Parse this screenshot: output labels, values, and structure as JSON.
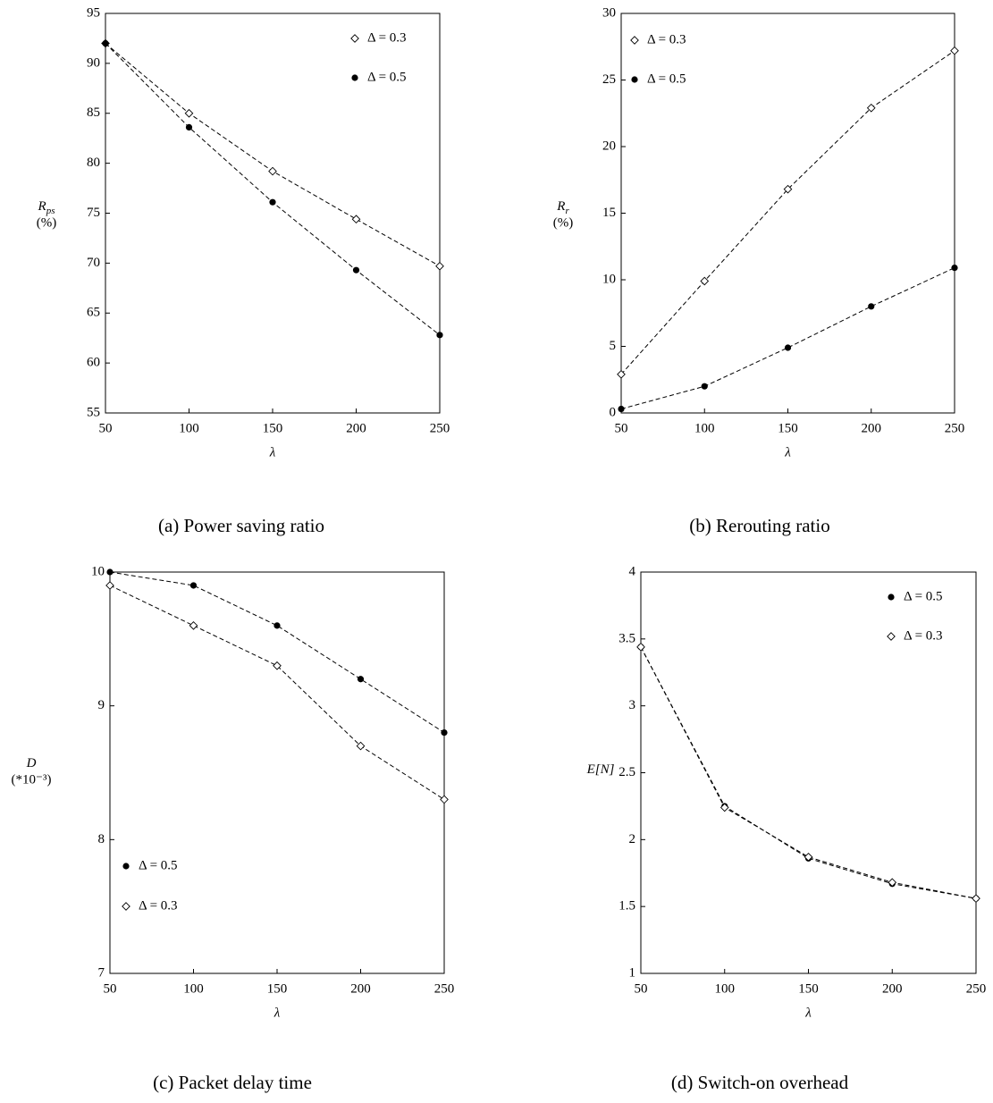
{
  "chart_data": [
    {
      "type": "line",
      "caption": "(a)  Power saving ratio",
      "xlabel": "λ",
      "ylabel": {
        "main": "R",
        "sub": "ps",
        "unit": "(%)"
      },
      "x": [
        50,
        100,
        150,
        200,
        250
      ],
      "xlim": [
        50,
        250
      ],
      "xticks": [
        50,
        100,
        150,
        200,
        250
      ],
      "ylim": [
        55,
        95
      ],
      "yticks": [
        55,
        60,
        65,
        70,
        75,
        80,
        85,
        90,
        95
      ],
      "legend": "top-right",
      "series": [
        {
          "name": "Δ = 0.3",
          "marker": "diamond",
          "color": "#000000",
          "values": [
            92,
            85,
            79.2,
            74.4,
            69.7
          ]
        },
        {
          "name": "Δ = 0.5",
          "marker": "dot",
          "color": "#000000",
          "values": [
            92,
            83.6,
            76.1,
            69.3,
            62.8
          ]
        }
      ]
    },
    {
      "type": "line",
      "caption": "(b)  Rerouting ratio",
      "xlabel": "λ",
      "ylabel": {
        "main": "R",
        "sub": "r",
        "unit": "(%)"
      },
      "x": [
        50,
        100,
        150,
        200,
        250
      ],
      "xlim": [
        50,
        250
      ],
      "xticks": [
        50,
        100,
        150,
        200,
        250
      ],
      "ylim": [
        0,
        30
      ],
      "yticks": [
        0,
        5,
        10,
        15,
        20,
        25,
        30
      ],
      "legend": "top-left",
      "series": [
        {
          "name": "Δ = 0.3",
          "marker": "diamond",
          "color": "#000000",
          "values": [
            2.9,
            9.9,
            16.8,
            22.9,
            27.2
          ]
        },
        {
          "name": "Δ = 0.5",
          "marker": "dot",
          "color": "#000000",
          "values": [
            0.3,
            2.0,
            4.9,
            8.0,
            10.9
          ]
        }
      ]
    },
    {
      "type": "line",
      "caption": "(c)  Packet delay time",
      "xlabel": "λ",
      "ylabel": {
        "main": "D",
        "unit": "(*10⁻³)"
      },
      "x": [
        50,
        100,
        150,
        200,
        250
      ],
      "xlim": [
        50,
        250
      ],
      "xticks": [
        50,
        100,
        150,
        200,
        250
      ],
      "ylim": [
        7,
        10
      ],
      "yticks": [
        7,
        8,
        9,
        10
      ],
      "legend": "bottom-left",
      "series": [
        {
          "name": "Δ = 0.5",
          "marker": "dot",
          "color": "#000000",
          "values": [
            10.0,
            9.9,
            9.6,
            9.2,
            8.8
          ]
        },
        {
          "name": "Δ = 0.3",
          "marker": "diamond",
          "color": "#000000",
          "values": [
            9.9,
            9.6,
            9.3,
            8.7,
            8.3
          ]
        }
      ]
    },
    {
      "type": "line",
      "caption": "(d)  Switch-on overhead",
      "xlabel": "λ",
      "ylabel": {
        "main": "E[N]"
      },
      "x": [
        50,
        100,
        150,
        200,
        250
      ],
      "xlim": [
        50,
        250
      ],
      "xticks": [
        50,
        100,
        150,
        200,
        250
      ],
      "ylim": [
        1,
        4
      ],
      "yticks": [
        1,
        1.5,
        2,
        2.5,
        3,
        3.5,
        4
      ],
      "legend": "top-right",
      "series": [
        {
          "name": "Δ = 0.5",
          "marker": "dot",
          "color": "#000000",
          "values": [
            3.44,
            2.25,
            1.86,
            1.67,
            1.56
          ]
        },
        {
          "name": "Δ = 0.3",
          "marker": "diamond",
          "color": "#000000",
          "values": [
            3.44,
            2.24,
            1.87,
            1.68,
            1.56
          ]
        }
      ]
    }
  ]
}
